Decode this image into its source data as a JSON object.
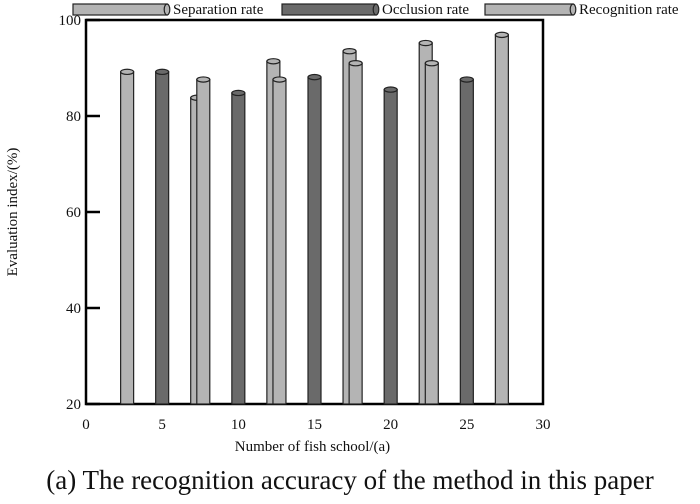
{
  "chart_data": {
    "type": "bar",
    "categories": [
      "5",
      "10",
      "15",
      "20",
      "25"
    ],
    "x": [
      5,
      10,
      15,
      20,
      25
    ],
    "series": [
      {
        "name": "Separation rate",
        "values": [
          89.2,
          87.6,
          87.6,
          91.0,
          91.0
        ],
        "color": "#b4b4b4"
      },
      {
        "name": "Occlusion rate",
        "values": [
          89.2,
          84.8,
          88.1,
          85.5,
          87.6
        ],
        "color": "#6a6a6a"
      },
      {
        "name": "Recognition rate",
        "values": [
          83.8,
          91.4,
          93.5,
          95.2,
          96.9
        ],
        "color": "#b4b4b4"
      }
    ],
    "xlabel": "Number of fish school/(a)",
    "ylabel": "Evaluation index/(%)",
    "xlim": [
      0,
      30
    ],
    "ylim": [
      20,
      100
    ],
    "x_ticks": [
      "0",
      "5",
      "10",
      "15",
      "20",
      "25",
      "30"
    ],
    "y_ticks": [
      "20",
      "40",
      "60",
      "80",
      "100"
    ],
    "legend_position": "top",
    "grid": false,
    "caption": "(a) The recognition accuracy of the method in this paper"
  }
}
